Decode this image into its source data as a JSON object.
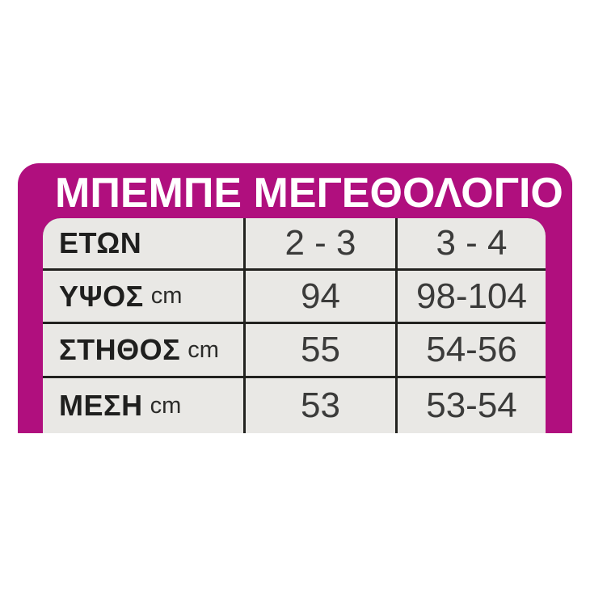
{
  "chart_data": {
    "type": "table",
    "title": "ΜΠΕΜΠΕ ΜΕΓΕΘΟΛΟΓΙΟ",
    "rows": [
      {
        "label": "ΕΤΩΝ",
        "unit": "",
        "values": [
          "2 - 3",
          "3 - 4"
        ]
      },
      {
        "label": "ΥΨΟΣ",
        "unit": "cm",
        "values": [
          "94",
          "98-104"
        ]
      },
      {
        "label": "ΣΤΗΘΟΣ",
        "unit": "cm",
        "values": [
          "55",
          "54-56"
        ]
      },
      {
        "label": "ΜΕΣΗ",
        "unit": "cm",
        "values": [
          "53",
          "53-54"
        ]
      }
    ]
  },
  "colors": {
    "accent_magenta": "#b00f7e",
    "cell_background": "#e9e8e5",
    "grid_line": "#22221f",
    "label_text": "#1f1f1e",
    "value_text": "#3b3b3a",
    "title_text": "#ffffff",
    "page_background": "#ffffff"
  }
}
